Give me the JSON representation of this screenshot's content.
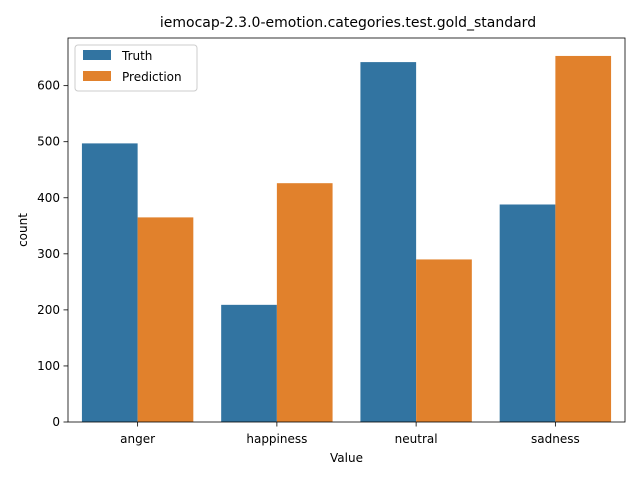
{
  "chart_data": {
    "type": "bar",
    "title": "iemocap-2.3.0-emotion.categories.test.gold_standard",
    "xlabel": "Value",
    "ylabel": "count",
    "categories": [
      "anger",
      "happiness",
      "neutral",
      "sadness"
    ],
    "series": [
      {
        "name": "Truth",
        "values": [
          497,
          209,
          642,
          388
        ],
        "color": "#3274a1"
      },
      {
        "name": "Prediction",
        "values": [
          365,
          426,
          290,
          653
        ],
        "color": "#e1812c"
      }
    ],
    "ylim": [
      0,
      685
    ],
    "yticks": [
      0,
      100,
      200,
      300,
      400,
      500,
      600
    ],
    "grid": false,
    "legend_position": "top-left"
  }
}
